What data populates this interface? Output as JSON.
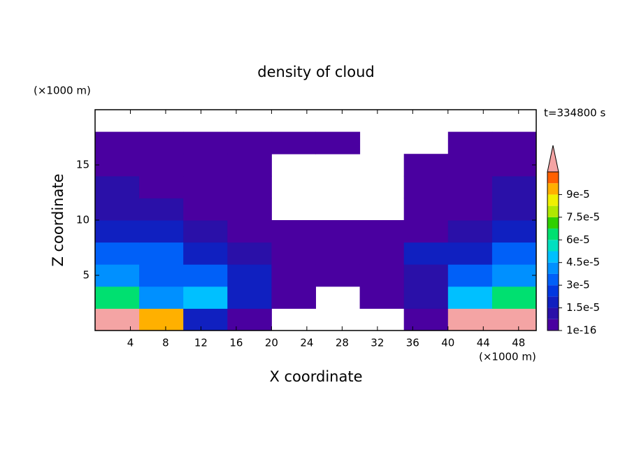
{
  "chart_data": {
    "type": "contour",
    "title": "density of cloud",
    "time_label": "t=334800 s",
    "xlabel": "X coordinate",
    "ylabel": "Z coordinate",
    "x_unit": "(×1000 m)",
    "y_unit": "(×1000 m)",
    "xlim": [
      0,
      50
    ],
    "ylim": [
      0,
      20
    ],
    "xticks": [
      4,
      8,
      12,
      16,
      20,
      24,
      28,
      32,
      36,
      40,
      44,
      48
    ],
    "yticks": [
      5,
      10,
      15
    ],
    "x": [
      2.5,
      7.5,
      12.5,
      17.5,
      22.5,
      27.5,
      32.5,
      37.5,
      42.5,
      47.5
    ],
    "y": [
      1,
      3,
      5,
      7,
      9,
      11,
      13,
      15,
      17
    ],
    "z": [
      [
        0.00011,
        9e-05,
        2e-05,
        5e-06,
        null,
        null,
        null,
        3e-06,
        0.00011,
        0.00011
      ],
      [
        6e-05,
        4e-05,
        4.5e-05,
        1.5e-05,
        5e-06,
        null,
        1e-16,
        1e-05,
        5e-05,
        6e-05
      ],
      [
        4e-05,
        3.5e-05,
        3e-05,
        1.5e-05,
        5e-06,
        1e-16,
        1e-16,
        8e-06,
        3e-05,
        4e-05
      ],
      [
        3.5e-05,
        3e-05,
        1.5e-05,
        8e-06,
        1e-16,
        1e-16,
        1e-16,
        1.5e-05,
        2e-05,
        3e-05
      ],
      [
        2e-05,
        1.5e-05,
        8e-06,
        1e-16,
        1e-16,
        1e-16,
        1e-16,
        5e-06,
        1e-05,
        2e-05
      ],
      [
        1e-05,
        1e-05,
        5e-06,
        1e-16,
        null,
        null,
        null,
        1e-16,
        5e-06,
        1e-05
      ],
      [
        8e-06,
        5e-06,
        5e-06,
        1e-16,
        null,
        null,
        null,
        1e-16,
        1e-16,
        8e-06
      ],
      [
        5e-06,
        1e-16,
        5e-06,
        1e-16,
        null,
        null,
        null,
        1e-16,
        1e-16,
        5e-06
      ],
      [
        1e-16,
        1e-16,
        1e-16,
        1e-16,
        1e-16,
        1e-16,
        null,
        null,
        1e-16,
        1e-16
      ]
    ],
    "levels": [
      1e-16,
      7.5e-06,
      1.5e-05,
      2.25e-05,
      3e-05,
      3.75e-05,
      4.5e-05,
      5.25e-05,
      6e-05,
      6.75e-05,
      7.5e-05,
      8.25e-05,
      9e-05,
      9.75e-05,
      0.000105
    ],
    "colors": [
      "#4a00a0",
      "#2a10a8",
      "#1020c0",
      "#0038e0",
      "#0060f8",
      "#0090ff",
      "#00c0ff",
      "#00e0c0",
      "#00e070",
      "#30d000",
      "#b0e800",
      "#f0f000",
      "#ffb000",
      "#ff6000",
      "#ff1000"
    ],
    "extend_color": "#f4a4a4",
    "cticks": [
      1e-16,
      {
        "value": 1.5e-05,
        "label": "1.5e-5"
      },
      {
        "value": 3e-05,
        "label": "3e-5"
      },
      {
        "value": 4.5e-05,
        "label": "4.5e-5"
      },
      {
        "value": 6e-05,
        "label": "6e-5"
      },
      {
        "value": 7.5e-05,
        "label": "7.5e-5"
      },
      {
        "value": 9e-05,
        "label": "9e-5"
      }
    ]
  }
}
